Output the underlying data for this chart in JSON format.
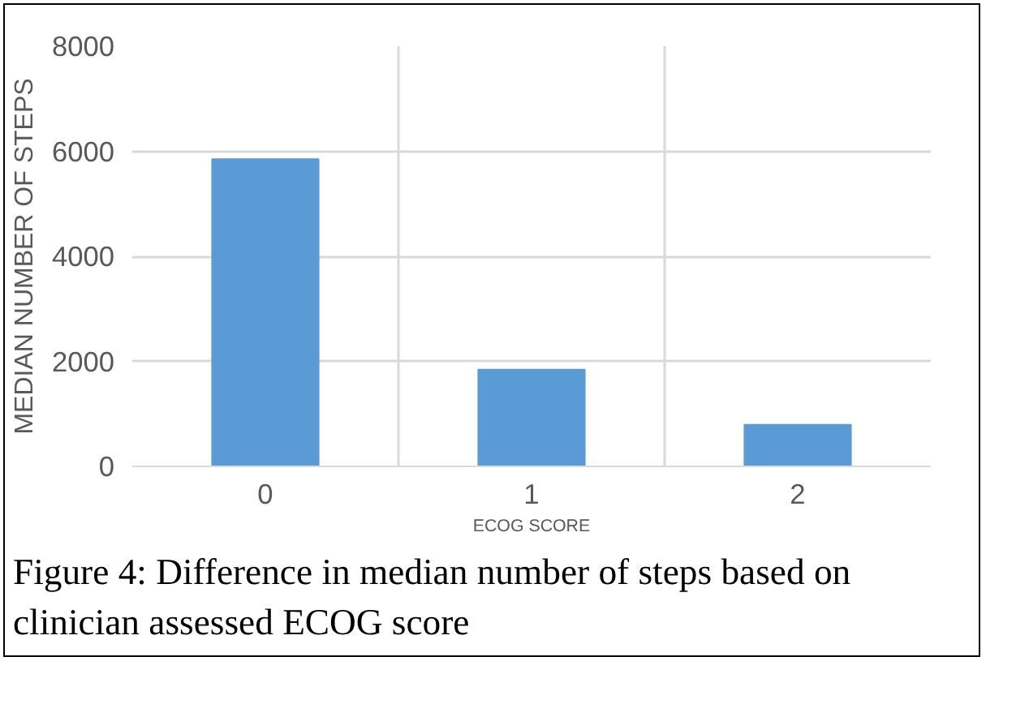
{
  "chart_data": {
    "type": "bar",
    "categories": [
      "0",
      "1",
      "2"
    ],
    "values": [
      5850,
      1840,
      790
    ],
    "color": "#5b9bd5",
    "xlabel": "ECOG SCORE",
    "ylabel": "MEDIAN NUMBER OF STEPS",
    "ylim": [
      0,
      8000
    ],
    "yticks": [
      0,
      2000,
      4000,
      6000,
      8000
    ],
    "grid": true,
    "annotations": [
      "Figure 4: Difference in median number of steps based on clinician assessed ECOG score"
    ]
  }
}
